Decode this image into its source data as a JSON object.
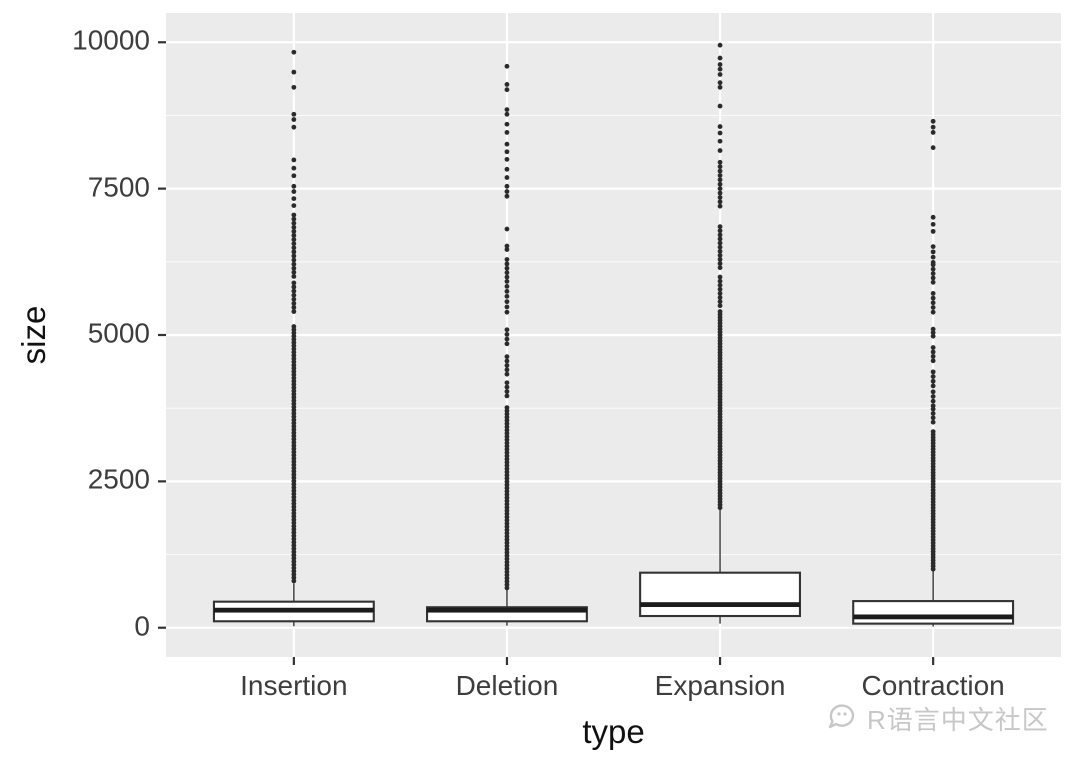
{
  "page": {
    "background": "#ffffff"
  },
  "chart_data": {
    "type": "boxplot",
    "title": "",
    "xlabel": "type",
    "ylabel": "size",
    "categories": [
      "Insertion",
      "Deletion",
      "Expansion",
      "Contraction"
    ],
    "ylim": [
      -500,
      10500
    ],
    "yticks": [
      0,
      2500,
      5000,
      7500,
      10000
    ],
    "yticks_minor": [
      1250,
      3750,
      6250,
      8750
    ],
    "legend": "none",
    "grid": "on",
    "panel_bg": "#ebebeb",
    "grid_major_color": "#ffffff",
    "grid_minor_color": "#f6f6f6",
    "boxes": [
      {
        "label": "Insertion",
        "whisker_low": 25,
        "q1": 110,
        "median": 300,
        "q3": 445,
        "whisker_high": 760,
        "outlier_runs": [
          [
            800,
            5150,
            55
          ],
          [
            5400,
            5920,
            70
          ],
          [
            6000,
            7060,
            70
          ]
        ],
        "outlier_points": [
          7210,
          7330,
          7450,
          7540,
          7720,
          7850,
          7990,
          8550,
          8680,
          8770,
          9230,
          9490,
          9830
        ]
      },
      {
        "label": "Deletion",
        "whisker_low": 35,
        "q1": 110,
        "median": 300,
        "q3": 350,
        "whisker_high": 660,
        "outlier_runs": [
          [
            680,
            3790,
            55
          ],
          [
            3960,
            4190,
            75
          ],
          [
            4330,
            4670,
            75
          ],
          [
            4850,
            5100,
            80
          ],
          [
            5390,
            5580,
            90
          ],
          [
            5660,
            5920,
            85
          ],
          [
            5990,
            6300,
            75
          ]
        ],
        "outlier_points": [
          6460,
          6520,
          6810,
          7370,
          7450,
          7540,
          7690,
          7830,
          8000,
          8130,
          8260,
          8460,
          8600,
          8770,
          8850,
          9190,
          9280,
          9590
        ]
      },
      {
        "label": "Expansion",
        "whisker_low": 70,
        "q1": 200,
        "median": 395,
        "q3": 940,
        "whisker_high": 2030,
        "outlier_runs": [
          [
            2050,
            5400,
            50
          ],
          [
            5500,
            6050,
            70
          ],
          [
            6150,
            6900,
            70
          ],
          [
            7200,
            7950,
            75
          ]
        ],
        "outlier_points": [
          8150,
          8310,
          8450,
          8560,
          8910,
          9230,
          9310,
          9450,
          9540,
          9620,
          9730,
          9950
        ]
      },
      {
        "label": "Contraction",
        "whisker_low": 20,
        "q1": 70,
        "median": 185,
        "q3": 455,
        "whisker_high": 1000,
        "outlier_runs": [
          [
            1000,
            3360,
            50
          ],
          [
            3510,
            3740,
            75
          ],
          [
            3790,
            4040,
            80
          ],
          [
            4130,
            4370,
            80
          ],
          [
            4560,
            4790,
            75
          ],
          [
            4980,
            5100,
            60
          ],
          [
            5390,
            5730,
            80
          ],
          [
            5900,
            6210,
            75
          ],
          [
            6240,
            6520,
            90
          ]
        ],
        "outlier_points": [
          6770,
          6890,
          7010,
          8200,
          8460,
          8550,
          8650
        ]
      }
    ],
    "style": {
      "box_fill": "#ffffff",
      "box_border": "#333333",
      "median_color": "#1c1c1c",
      "whisker_color": "#333333",
      "outlier_color": "#2b2b2b",
      "axis_text_color": "#3d3d3d",
      "axis_title_color": "#111111",
      "tick_color": "#333333"
    }
  },
  "watermark": {
    "text": "R语言中文社区",
    "icon": "chat-bubble-icon",
    "color": "#c7c7c7"
  }
}
